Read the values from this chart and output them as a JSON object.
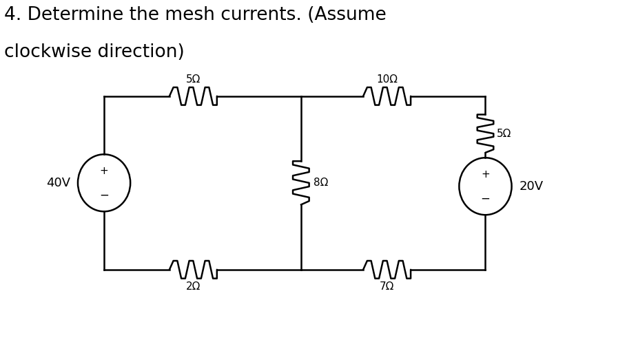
{
  "title_line1": "4. Determine the mesh currents. (Assume",
  "title_line2": "clockwise direction)",
  "title_fontsize": 19,
  "bg_color": "#ffffff",
  "line_color": "black",
  "lw": 1.8,
  "resistor_labels": {
    "5ohm_top": "5Ω",
    "10ohm_top": "10Ω",
    "8ohm_mid": "8Ω",
    "5ohm_right": "5Ω",
    "2ohm_bot": "2Ω",
    "7ohm_bot": "7Ω"
  },
  "source_40v_label": "40V",
  "source_20v_label": "20V"
}
